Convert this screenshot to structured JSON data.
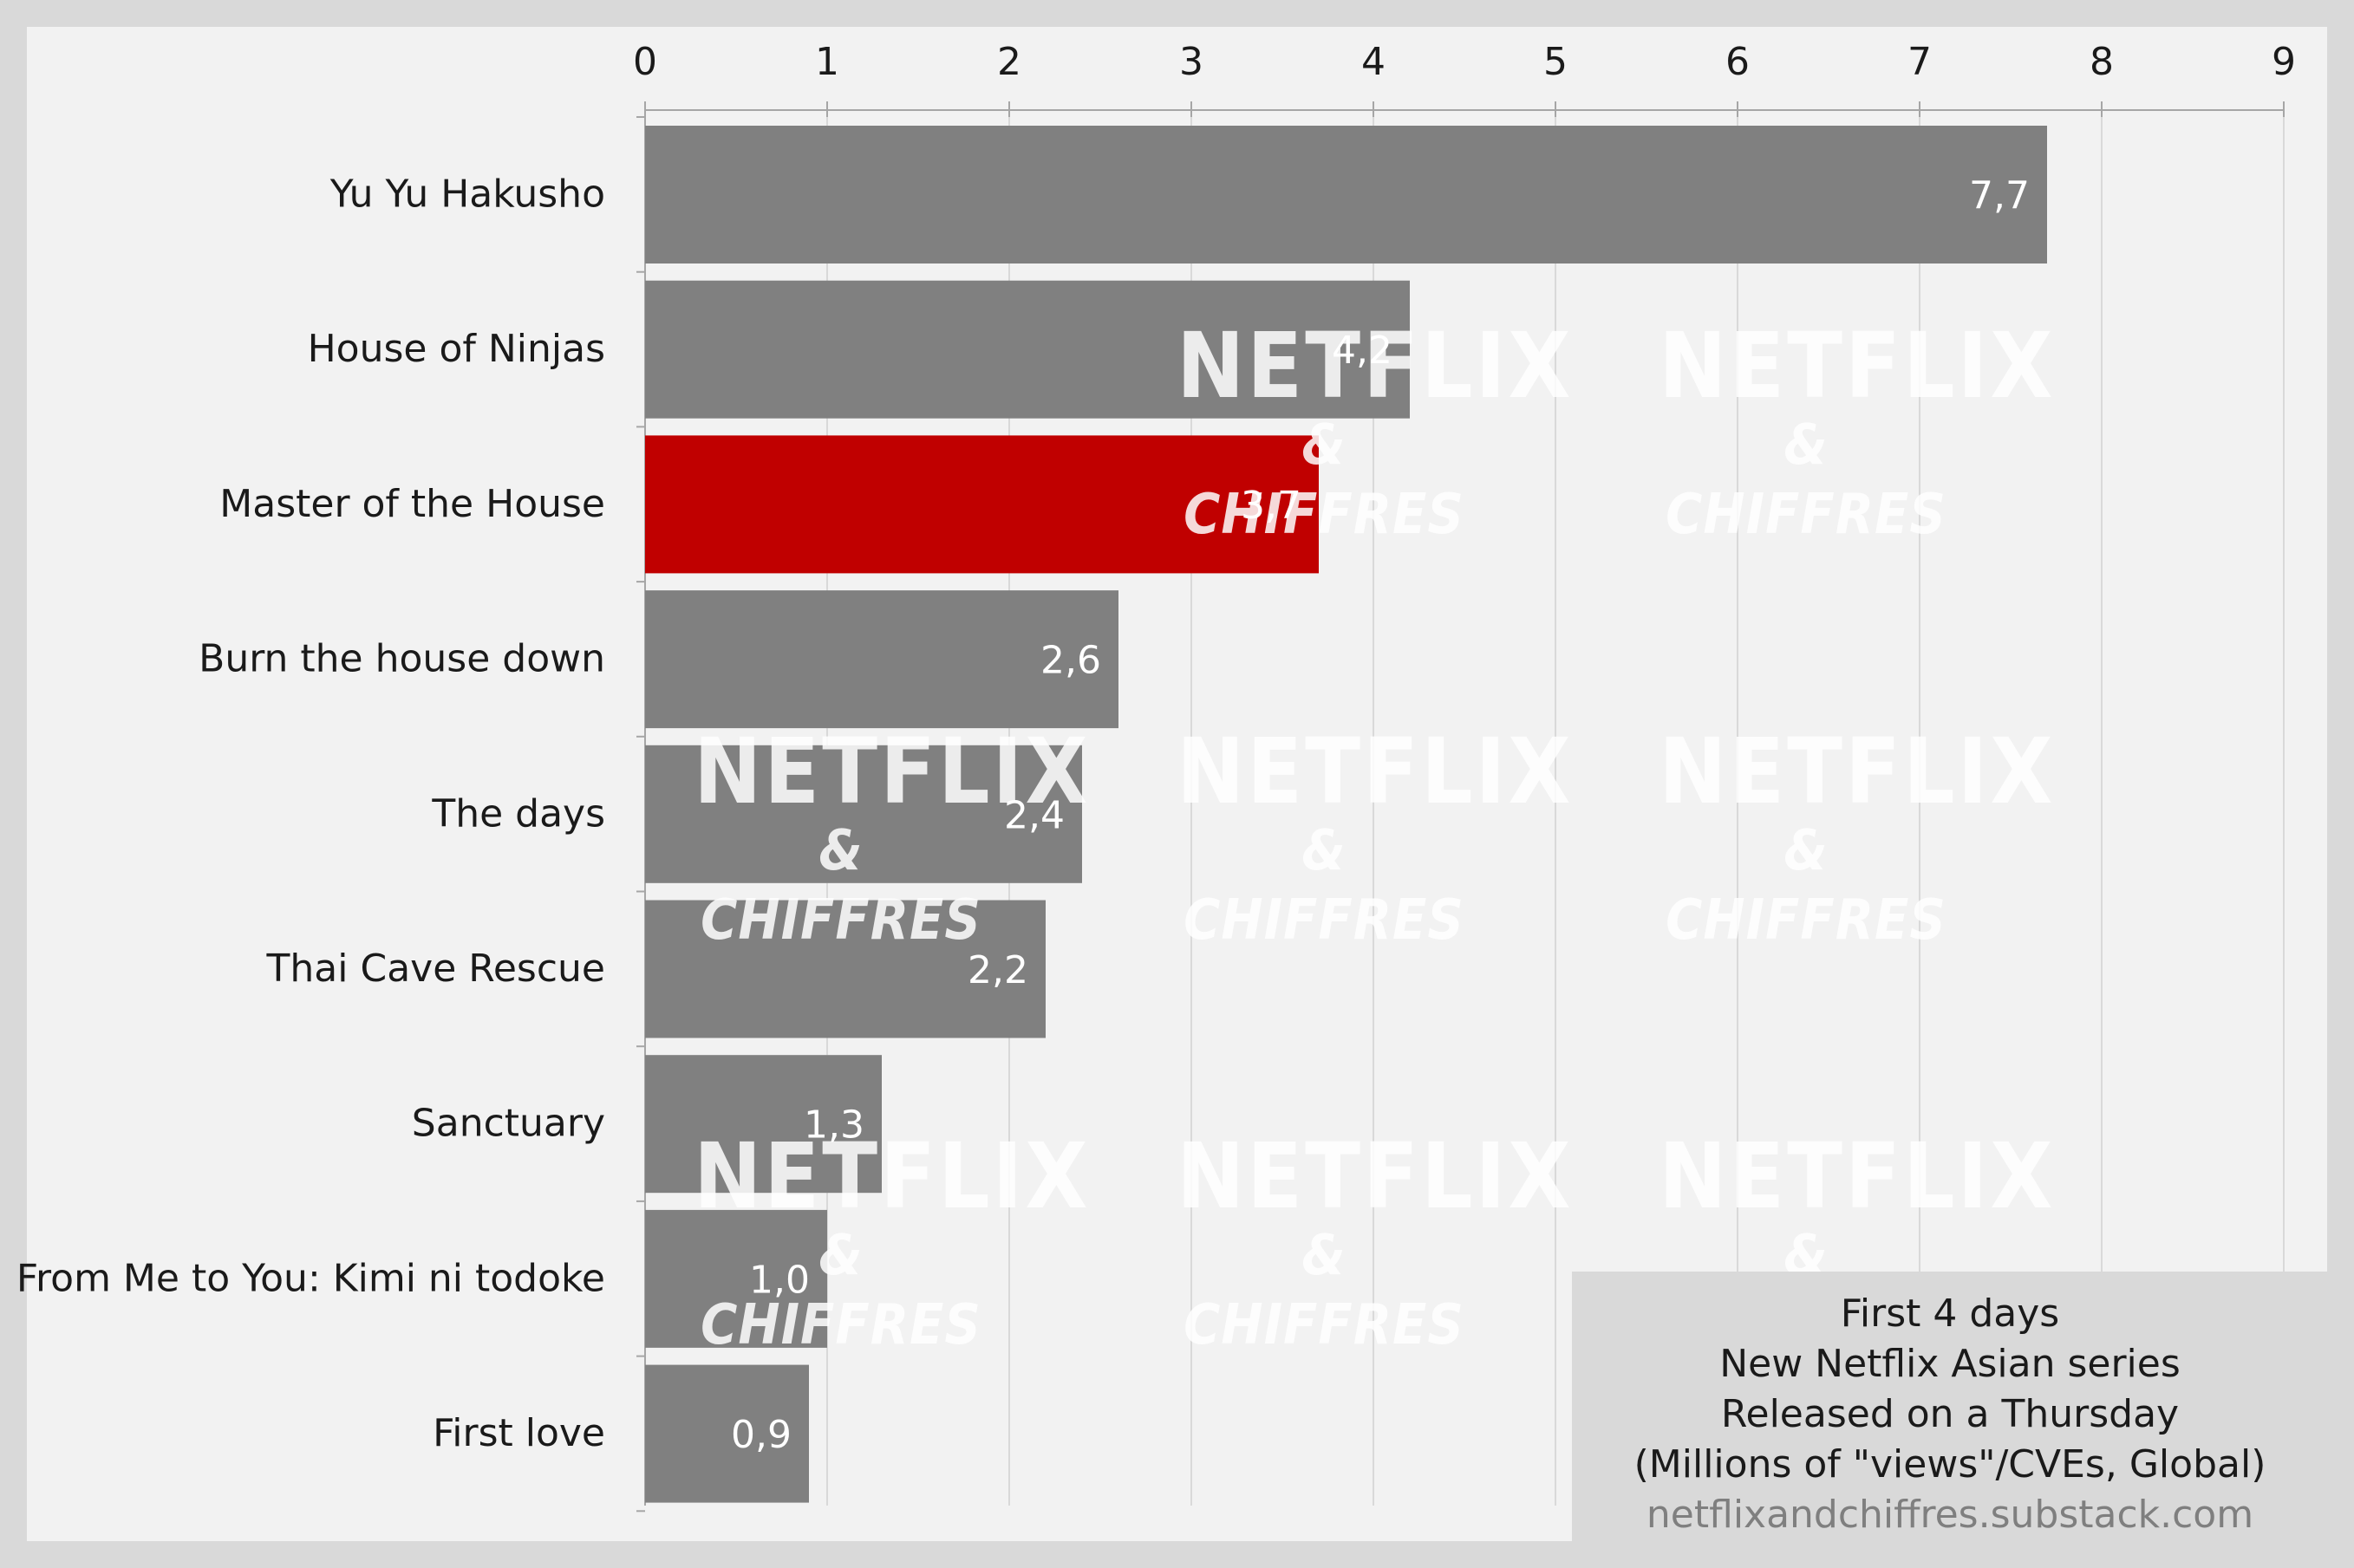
{
  "chart_data": {
    "type": "bar",
    "orientation": "horizontal",
    "categories": [
      "Yu Yu Hakusho",
      "House of Ninjas",
      "Master of the House",
      "Burn the house down",
      "The days",
      "Thai Cave Rescue",
      "Sanctuary",
      "From Me to You: Kimi ni todoke",
      "First love"
    ],
    "values": [
      7.7,
      4.2,
      3.7,
      2.6,
      2.4,
      2.2,
      1.3,
      1.0,
      0.9
    ],
    "value_labels": [
      "7,7",
      "4,2",
      "3,7",
      "2,6",
      "2,4",
      "2,2",
      "1,3",
      "1,0",
      "0,9"
    ],
    "xlim": [
      0,
      9
    ],
    "x_ticks": [
      0,
      1,
      2,
      3,
      4,
      5,
      6,
      7,
      8,
      9
    ],
    "x_axis_position": "top",
    "grid": true,
    "highlight_index": 2,
    "colors": {
      "bar": "#808080",
      "highlight": "#c00000",
      "grid": "#d9d9d9",
      "axis": "#a6a6a6"
    },
    "title": "",
    "xlabel": "",
    "ylabel": ""
  },
  "annotation": {
    "lines": [
      "First 4 days",
      "New Netflix Asian series",
      "Released on a Thursday",
      "(Millions of \"views\"/CVEs, Global)"
    ],
    "source": "netflixandchiffres.substack.com"
  },
  "watermark": {
    "line1": "NETFLIX",
    "line2": "& CHIFFRES"
  }
}
